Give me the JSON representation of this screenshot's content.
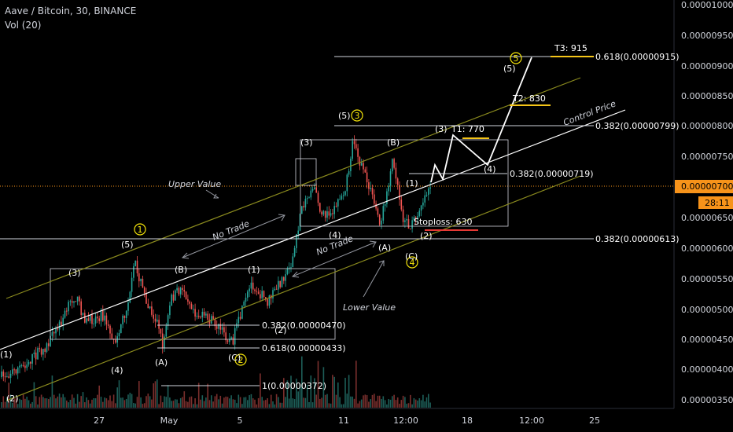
{
  "header": {
    "symbol_line": "Aave / Bitcoin, 30, BINANCE",
    "volume_line": "Vol (20)"
  },
  "price_axis": {
    "ticks": [
      "0.00001000",
      "0.00000950",
      "0.00000900",
      "0.00000850",
      "0.00000800",
      "0.00000750",
      "0.00000650",
      "0.00000600",
      "0.00000550",
      "0.00000500",
      "0.00000450",
      "0.00000400",
      "0.00000350"
    ],
    "current_price": "0.00000700",
    "countdown": "28:11"
  },
  "time_axis": {
    "ticks": [
      "27",
      "May",
      "5",
      "11",
      "12:00",
      "18",
      "12:00",
      "25"
    ]
  },
  "fib_labels": {
    "f918": "0.618(0.00000915)",
    "f799": "0.382(0.00000799)",
    "f719": "0.382(0.00000719)",
    "f613": "0.382(0.00000613)",
    "f470": "0.382(0.00000470)",
    "f433": "0.618(0.00000433)",
    "f372": "1(0.00000372)"
  },
  "targets": {
    "t3": "T3: 915",
    "t2": "T2: 830",
    "t1": "T1: 770",
    "stoploss": "Stoploss: 630"
  },
  "channel_labels": {
    "upper": "Upper Value",
    "lower": "Lower Value",
    "control": "Control Price",
    "no_trade_1": "No Trade",
    "no_trade_2": "No Trade"
  },
  "waves": {
    "w1": "(1)",
    "w2": "(2)",
    "w3": "(3)",
    "w4": "(4)",
    "w5": "(5)",
    "wa": "(A)",
    "wb": "(B)",
    "wc": "(C)",
    "c1": "1",
    "c2": "2",
    "c3": "3",
    "c4": "4",
    "c5": "5"
  },
  "colors": {
    "background": "#000000",
    "grid_text": "#d1d4dc",
    "current_price_bg": "#f7931a",
    "candle_up": "#26a69a",
    "candle_down": "#ef5350",
    "channel": "#8a8a1e",
    "target_underline": "#f5c518",
    "stoploss_line": "#e53935",
    "wave_circle": "#f5e50a"
  },
  "chart_data": {
    "type": "candlestick",
    "y_scale": "linear",
    "ylim": [
      3.35e-06,
      1.01e-05
    ],
    "annotations": [
      "T3: 915",
      "T2: 830",
      "T1: 770",
      "Stoploss: 630",
      "Upper Value",
      "Lower Value",
      "Control Price",
      "No Trade"
    ],
    "fib_levels": [
      9.15e-06,
      7.99e-06,
      7.19e-06,
      6.13e-06,
      4.7e-06,
      4.33e-06,
      3.72e-06
    ],
    "current_price": 7e-06
  }
}
